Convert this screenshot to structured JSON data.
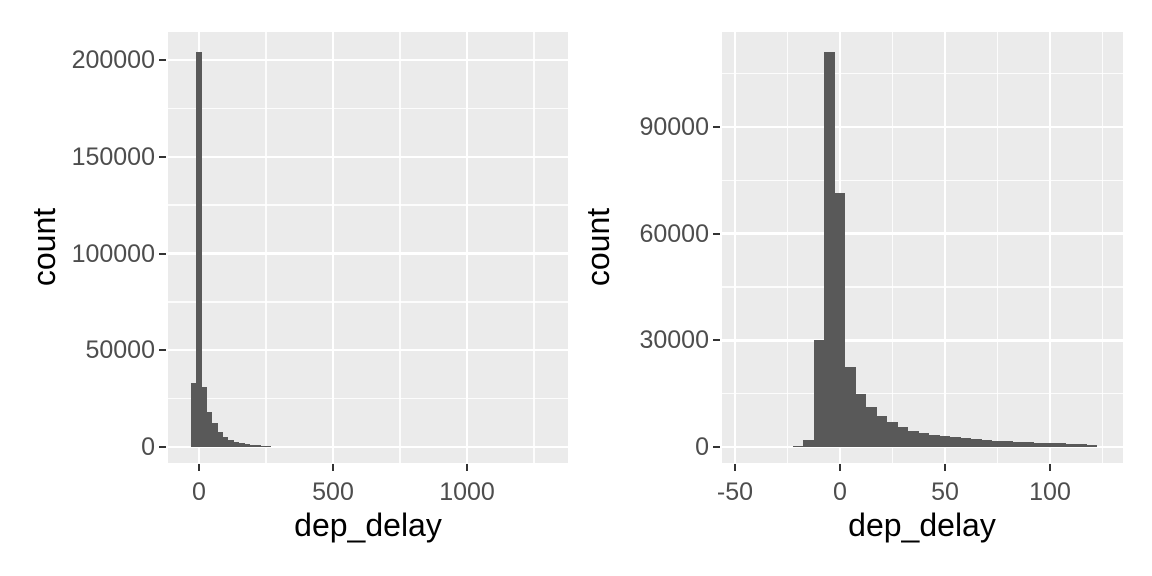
{
  "figure": {
    "background": "#FFFFFF",
    "panel_background": "#EBEBEB",
    "grid_color": "#FFFFFF",
    "bar_color": "#595959",
    "tick_mark_color": "#333333",
    "tick_label_color": "#4D4D4D",
    "axis_title_color": "#000000"
  },
  "chart_data": [
    {
      "type": "bar",
      "subtype": "histogram",
      "title": "",
      "xlabel": "dep_delay",
      "ylabel": "count",
      "legend": "none",
      "grid": true,
      "bin_width": 20,
      "bin_centers": [
        -20,
        0,
        20,
        40,
        60,
        80,
        100,
        120,
        140,
        160,
        180,
        200,
        220,
        240,
        260
      ],
      "counts": [
        33000,
        204300,
        31000,
        18100,
        12250,
        7900,
        5300,
        3600,
        2750,
        2050,
        1550,
        1200,
        950,
        700,
        500
      ],
      "x_ticks": [
        0,
        500,
        1000
      ],
      "x_minor_ticks": [
        250,
        750,
        1250
      ],
      "y_ticks": [
        0,
        50000,
        100000,
        150000,
        200000
      ],
      "y_minor_ticks": [
        25000,
        75000,
        125000,
        175000
      ],
      "xlim": [
        -116,
        1377
      ],
      "ylim": [
        0,
        214500
      ]
    },
    {
      "type": "bar",
      "subtype": "histogram",
      "title": "",
      "xlabel": "dep_delay",
      "ylabel": "count",
      "legend": "none",
      "grid": true,
      "bin_width": 5,
      "bin_centers": [
        -20,
        -15,
        -10,
        -5,
        0,
        5,
        10,
        15,
        20,
        25,
        30,
        35,
        40,
        45,
        50,
        55,
        60,
        65,
        70,
        75,
        80,
        85,
        90,
        95,
        100,
        105,
        110,
        115,
        120
      ],
      "counts": [
        370,
        2000,
        30000,
        111000,
        71400,
        22500,
        14800,
        11300,
        8800,
        7000,
        5600,
        4600,
        4000,
        3500,
        3100,
        2800,
        2500,
        2250,
        2000,
        1800,
        1600,
        1450,
        1300,
        1200,
        1100,
        1000,
        900,
        750,
        600
      ],
      "x_ticks": [
        -50,
        0,
        50,
        100
      ],
      "x_minor_ticks": [
        -25,
        25,
        75,
        125
      ],
      "y_ticks": [
        0,
        30000,
        60000,
        90000
      ],
      "y_minor_ticks": [
        15000,
        45000,
        75000,
        105000
      ],
      "xlim": [
        -56,
        135
      ],
      "ylim": [
        0,
        116700
      ]
    }
  ]
}
